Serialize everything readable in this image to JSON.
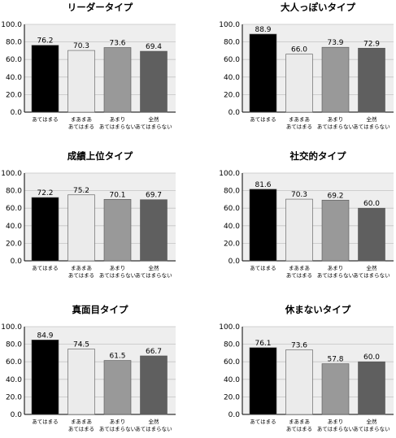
{
  "chart_data": [
    {
      "type": "bar",
      "title": "リーダータイプ",
      "categories": [
        [
          "あてはまる"
        ],
        [
          "まあまあ",
          "あてはまる"
        ],
        [
          "あまり",
          "あてはまらない"
        ],
        [
          "全然",
          "あてはまらない"
        ]
      ],
      "values": [
        76.2,
        70.3,
        73.6,
        69.4
      ],
      "value_labels": [
        "76.2",
        "70.3",
        "73.6",
        "69.4"
      ],
      "yticks": [
        "100.0",
        "80.0",
        "60.0",
        "40.0",
        "20.0",
        "0.0"
      ],
      "ylim": [
        0,
        100
      ],
      "grid": true
    },
    {
      "type": "bar",
      "title": "大人っぽいタイプ",
      "categories": [
        [
          "あてはまる"
        ],
        [
          "まあまあ",
          "あてはまる"
        ],
        [
          "あまり",
          "あてはまらない"
        ],
        [
          "全然",
          "あてはまらない"
        ]
      ],
      "values": [
        88.9,
        66.0,
        73.9,
        72.9
      ],
      "value_labels": [
        "88.9",
        "66.0",
        "73.9",
        "72.9"
      ],
      "yticks": [
        "100.0",
        "80.0",
        "60.0",
        "40.0",
        "20.0",
        "0.0"
      ],
      "ylim": [
        0,
        100
      ],
      "grid": true
    },
    {
      "type": "bar",
      "title": "成績上位タイプ",
      "categories": [
        [
          "あてはまる"
        ],
        [
          "まあまあ",
          "あてはまる"
        ],
        [
          "あまり",
          "あてはまらない"
        ],
        [
          "全然",
          "あてはまらない"
        ]
      ],
      "values": [
        72.2,
        75.2,
        70.1,
        69.7
      ],
      "value_labels": [
        "72.2",
        "75.2",
        "70.1",
        "69.7"
      ],
      "yticks": [
        "100.0",
        "80.0",
        "60.0",
        "40.0",
        "20.0",
        "0.0"
      ],
      "ylim": [
        0,
        100
      ],
      "grid": true
    },
    {
      "type": "bar",
      "title": "社交的タイプ",
      "categories": [
        [
          "あてはまる"
        ],
        [
          "まあまあ",
          "あてはまる"
        ],
        [
          "あまり",
          "あてはまらない"
        ],
        [
          "全然",
          "あてはまらない"
        ]
      ],
      "values": [
        81.6,
        70.3,
        69.2,
        60.0
      ],
      "value_labels": [
        "81.6",
        "70.3",
        "69.2",
        "60.0"
      ],
      "yticks": [
        "100.0",
        "80.0",
        "60.0",
        "40.0",
        "20.0",
        "0.0"
      ],
      "ylim": [
        0,
        100
      ],
      "grid": true
    },
    {
      "type": "bar",
      "title": "真面目タイプ",
      "categories": [
        [
          "あてはまる"
        ],
        [
          "まあまあ",
          "あてはまる"
        ],
        [
          "あまり",
          "あてはまらない"
        ],
        [
          "全然",
          "あてはまらない"
        ]
      ],
      "values": [
        84.9,
        74.5,
        61.5,
        66.7
      ],
      "value_labels": [
        "84.9",
        "74.5",
        "61.5",
        "66.7"
      ],
      "yticks": [
        "100.0",
        "80.0",
        "60.0",
        "40.0",
        "20.0",
        "0.0"
      ],
      "ylim": [
        0,
        100
      ],
      "grid": true
    },
    {
      "type": "bar",
      "title": "休まないタイプ",
      "categories": [
        [
          "あてはまる"
        ],
        [
          "まあまあ",
          "あてはまる"
        ],
        [
          "あまり",
          "あてはまらない"
        ],
        [
          "全然",
          "あてはまらない"
        ]
      ],
      "values": [
        76.1,
        73.6,
        57.8,
        60.0
      ],
      "value_labels": [
        "76.1",
        "73.6",
        "57.8",
        "60.0"
      ],
      "yticks": [
        "100.0",
        "80.0",
        "60.0",
        "40.0",
        "20.0",
        "0.0"
      ],
      "ylim": [
        0,
        100
      ],
      "grid": true
    }
  ],
  "colors": {
    "bars": [
      "#000000",
      "#ebebeb",
      "#999999",
      "#5f5f5f"
    ],
    "plot_background": "#eeeeee",
    "gridline": "#c4c4c4",
    "bar_outline": "#555555"
  }
}
